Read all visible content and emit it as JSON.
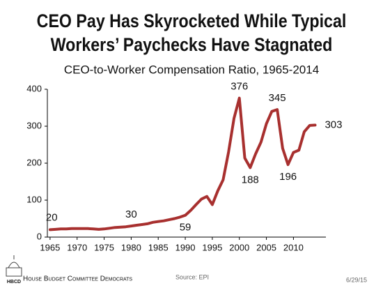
{
  "chart_data": {
    "type": "line",
    "title": [
      "CEO Pay Has Skyrocketed While Typical",
      "Workers’ Paychecks Have Stagnated"
    ],
    "subtitle": "CEO-to-Worker Compensation Ratio, 1965-2014",
    "x": [
      1965,
      1966,
      1967,
      1968,
      1969,
      1970,
      1971,
      1972,
      1973,
      1974,
      1975,
      1976,
      1977,
      1978,
      1979,
      1980,
      1981,
      1982,
      1983,
      1984,
      1985,
      1986,
      1987,
      1988,
      1989,
      1990,
      1991,
      1992,
      1993,
      1994,
      1995,
      1996,
      1997,
      1998,
      1999,
      2000,
      2001,
      2002,
      2003,
      2004,
      2005,
      2006,
      2007,
      2008,
      2009,
      2010,
      2011,
      2012,
      2013,
      2014
    ],
    "series": [
      {
        "name": "CEO-to-Worker Compensation Ratio",
        "color": "#a8302f",
        "values": [
          20,
          21,
          22,
          22,
          23,
          23,
          23,
          23,
          22,
          21,
          22,
          24,
          26,
          27,
          28,
          30,
          32,
          34,
          36,
          40,
          42,
          44,
          47,
          50,
          54,
          59,
          72,
          88,
          103,
          110,
          88,
          125,
          155,
          230,
          321,
          376,
          214,
          188,
          225,
          257,
          307,
          340,
          345,
          240,
          196,
          229,
          235,
          285,
          302,
          303
        ]
      }
    ],
    "annotations": [
      {
        "x": 1965,
        "y": 20,
        "text": "20"
      },
      {
        "x": 1980,
        "y": 30,
        "text": "30"
      },
      {
        "x": 1990,
        "y": 59,
        "text": "59"
      },
      {
        "x": 2000,
        "y": 376,
        "text": "376"
      },
      {
        "x": 2002,
        "y": 188,
        "text": "188"
      },
      {
        "x": 2007,
        "y": 345,
        "text": "345"
      },
      {
        "x": 2009,
        "y": 196,
        "text": "196"
      },
      {
        "x": 2014,
        "y": 303,
        "text": "303"
      }
    ],
    "xlim": [
      1964.5,
      2016
    ],
    "xticks": [
      1965,
      1970,
      1975,
      1980,
      1985,
      1990,
      1995,
      2000,
      2005,
      2010
    ],
    "ylim": [
      0,
      400
    ],
    "yticks": [
      0,
      100,
      200,
      300,
      400
    ]
  },
  "footer": {
    "logo": "HBCD",
    "organization": "House Budget Committee Democrats",
    "source": "Source: EPI",
    "date": "6/29/15"
  }
}
